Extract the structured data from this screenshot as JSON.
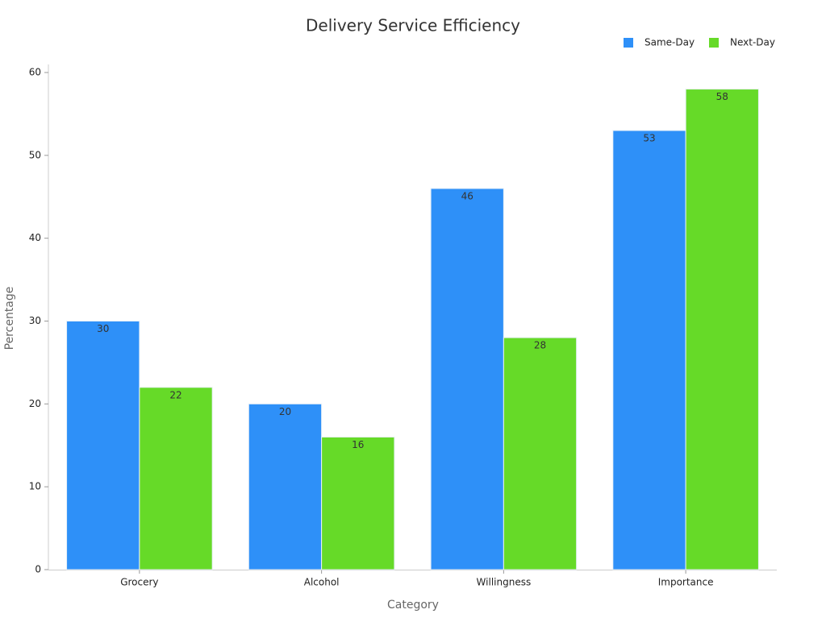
{
  "chart_data": {
    "type": "bar",
    "title": "Delivery Service Efficiency",
    "x_label": "Category",
    "y_label": "Percentage",
    "categories": [
      "Grocery",
      "Alcohol",
      "Willingness",
      "Importance"
    ],
    "series": [
      {
        "name": "Same-Day",
        "color": "#2e90f8",
        "values": [
          30,
          20,
          46,
          53
        ]
      },
      {
        "name": "Next-Day",
        "color": "#66da28",
        "values": [
          22,
          16,
          28,
          58
        ]
      }
    ],
    "ylim": [
      0,
      60
    ],
    "yticks": [
      0,
      10,
      20,
      30,
      40,
      50,
      60
    ],
    "legend": "top-right"
  }
}
